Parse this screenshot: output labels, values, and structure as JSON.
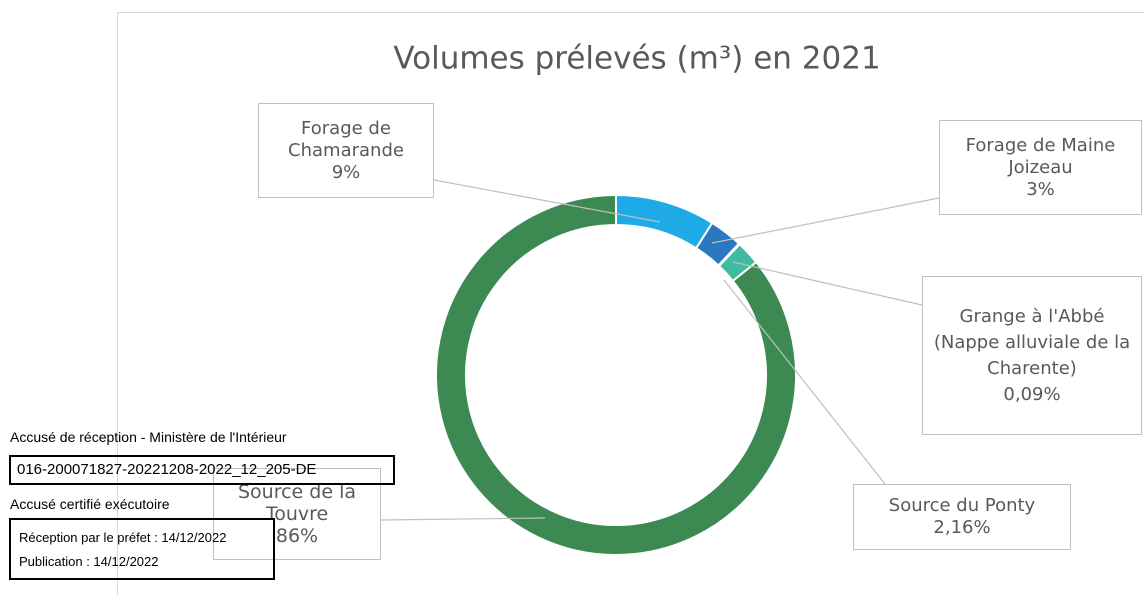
{
  "chart_data": {
    "type": "donut",
    "title": "Volumes prélevés (m³) en 2021",
    "categories": [
      "Forage de Chamarande",
      "Forage de Maine Joizeau",
      "Grange à l'Abbé (Nappe alluviale de la Charente)",
      "Source du Ponty",
      "Source de la Touvre"
    ],
    "values": [
      9,
      3,
      0.09,
      2.16,
      86
    ],
    "value_labels": [
      "9%",
      "3%",
      "0,09%",
      "2,16%",
      "86%"
    ],
    "colors": [
      "#1eaae7",
      "#2a78c0",
      "#52b78e",
      "#3dbca0",
      "#3c8a51"
    ]
  },
  "stamp": {
    "heading": "Accusé de réception - Ministère de l'Intérieur",
    "id": "016-200071827-20221208-2022_12_205-DE",
    "certified": "Accusé certifié exécutoire",
    "reception": "Réception par le préfet : 14/12/2022",
    "publication": "Publication : 14/12/2022"
  }
}
